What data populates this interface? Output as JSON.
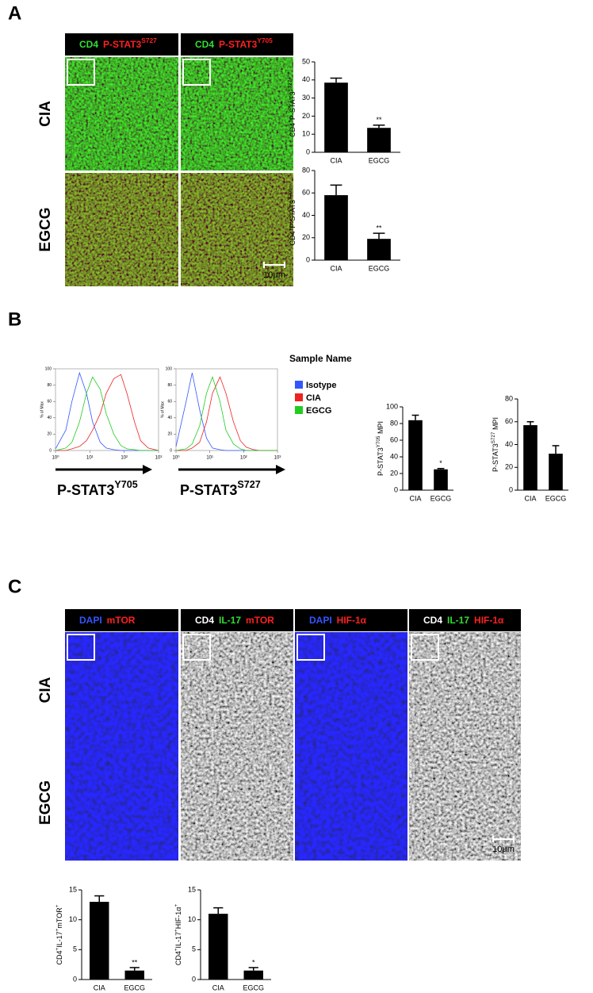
{
  "panel_labels": [
    "A",
    "B",
    "C"
  ],
  "panel_a": {
    "headers": [
      [
        {
          "text": "CD4",
          "color": "#33dd33"
        },
        {
          "text": "P-STAT3",
          "color": "#ff2020"
        },
        {
          "text": "S727",
          "color": "#ff2020",
          "sup": true
        }
      ],
      [
        {
          "text": "CD4",
          "color": "#33dd33"
        },
        {
          "text": "P-STAT3",
          "color": "#ff2020"
        },
        {
          "text": "Y705",
          "color": "#ff2020",
          "sup": true
        }
      ]
    ],
    "row_labels": [
      "CIA",
      "EGCG"
    ],
    "scale_bar": "10μm"
  },
  "panel_b": {
    "legend_title": "Sample Name"
  },
  "panel_c": {
    "headers": [
      [
        {
          "text": "DAPI",
          "color": "#3355ff"
        },
        {
          "text": "mTOR",
          "color": "#ff2020"
        }
      ],
      [
        {
          "text": "CD4",
          "color": "#ffffff"
        },
        {
          "text": "IL-17",
          "color": "#33dd33"
        },
        {
          "text": "mTOR",
          "color": "#ff2020"
        }
      ],
      [
        {
          "text": "DAPI",
          "color": "#3355ff"
        },
        {
          "text": "HIF-1α",
          "color": "#ff2020"
        }
      ],
      [
        {
          "text": "CD4",
          "color": "#ffffff"
        },
        {
          "text": "IL-17",
          "color": "#33dd33"
        },
        {
          "text": "HIF-1α",
          "color": "#ff2020"
        }
      ]
    ],
    "row_labels": [
      "CIA",
      "EGCG"
    ],
    "scale_bar": "10μm"
  },
  "chart_data": [
    {
      "type": "bar",
      "y_label": [
        {
          "text": "CD4"
        },
        {
          "text": "+",
          "sup": true
        },
        {
          "text": "P-STAT3"
        },
        {
          "text": "S727+",
          "sup": true
        }
      ],
      "categories": [
        "CIA",
        "EGCG"
      ],
      "values": [
        38.5,
        13.5
      ],
      "errors": [
        2.5,
        1.5
      ],
      "significance": [
        null,
        "**"
      ],
      "color": "#000000",
      "ylim": [
        0,
        50
      ],
      "yticks": [
        0,
        10,
        20,
        30,
        40,
        50
      ]
    },
    {
      "type": "bar",
      "y_label": [
        {
          "text": "CD4"
        },
        {
          "text": "+",
          "sup": true
        },
        {
          "text": "P-STAT3"
        },
        {
          "text": "Y705+",
          "sup": true
        }
      ],
      "categories": [
        "CIA",
        "EGCG"
      ],
      "values": [
        58,
        19
      ],
      "errors": [
        9,
        5
      ],
      "significance": [
        null,
        "**"
      ],
      "color": "#000000",
      "ylim": [
        0,
        80
      ],
      "yticks": [
        0,
        20,
        40,
        60,
        80
      ]
    },
    {
      "type": "line",
      "log_x": true,
      "y_label": [
        {
          "text": "% of Max"
        }
      ],
      "x_label": [
        {
          "text": "P-STAT3"
        },
        {
          "text": "Y705",
          "sup": true
        }
      ],
      "x": [
        1,
        2,
        3,
        5,
        8,
        12,
        20,
        30,
        50,
        80,
        120,
        200,
        300,
        500,
        1000
      ],
      "series": [
        {
          "name": "Isotype",
          "color": "#3355ff",
          "values": [
            2,
            25,
            60,
            95,
            70,
            35,
            10,
            3,
            1,
            0,
            0,
            0,
            0,
            0,
            0
          ]
        },
        {
          "name": "CIA",
          "color": "#ee2222",
          "values": [
            0,
            0,
            2,
            5,
            12,
            25,
            45,
            70,
            88,
            93,
            70,
            35,
            12,
            3,
            0
          ]
        },
        {
          "name": "EGCG",
          "color": "#22cc22",
          "values": [
            0,
            3,
            10,
            35,
            70,
            90,
            75,
            45,
            20,
            6,
            2,
            1,
            0,
            0,
            0
          ]
        }
      ],
      "xlim": [
        1,
        1000
      ],
      "xticks": [
        {
          "value": 1,
          "label": "10⁰"
        },
        {
          "value": 10,
          "label": "10¹"
        },
        {
          "value": 100,
          "label": "10²"
        },
        {
          "value": 1000,
          "label": "10³"
        }
      ],
      "ylim": [
        0,
        100
      ],
      "yticks": [
        0,
        20,
        40,
        60,
        80,
        100
      ]
    },
    {
      "type": "line",
      "log_x": true,
      "y_label": [
        {
          "text": "% of Max"
        }
      ],
      "x_label": [
        {
          "text": "P-STAT3"
        },
        {
          "text": "S727",
          "sup": true
        }
      ],
      "x": [
        1,
        2,
        3,
        5,
        8,
        12,
        20,
        30,
        50,
        80,
        120,
        200,
        300,
        500,
        1000
      ],
      "series": [
        {
          "color": "#3355ff",
          "values": [
            5,
            60,
            95,
            50,
            15,
            3,
            1,
            0,
            0,
            0,
            0,
            0,
            0,
            0,
            0
          ]
        },
        {
          "color": "#ee2222",
          "values": [
            0,
            0,
            3,
            10,
            35,
            70,
            90,
            70,
            35,
            12,
            4,
            1,
            0,
            0,
            0
          ]
        },
        {
          "color": "#22cc22",
          "values": [
            0,
            2,
            8,
            30,
            70,
            90,
            60,
            25,
            8,
            2,
            0,
            0,
            0,
            0,
            0
          ]
        }
      ],
      "xlim": [
        1,
        1000
      ],
      "xticks": [
        {
          "value": 1,
          "label": "10⁰"
        },
        {
          "value": 10,
          "label": "10¹"
        },
        {
          "value": 100,
          "label": "10²"
        },
        {
          "value": 1000,
          "label": "10³"
        }
      ],
      "ylim": [
        0,
        100
      ],
      "yticks": [
        0,
        20,
        40,
        60,
        80,
        100
      ]
    },
    {
      "type": "bar",
      "y_label": [
        {
          "text": "P-STAT3"
        },
        {
          "text": "Y705",
          "sup": true
        },
        {
          "text": " MPI"
        }
      ],
      "categories": [
        "CIA",
        "EGCG"
      ],
      "values": [
        84,
        25
      ],
      "errors": [
        6,
        1
      ],
      "significance": [
        null,
        "*"
      ],
      "color": "#000000",
      "ylim": [
        0,
        100
      ],
      "yticks": [
        0,
        20,
        40,
        60,
        80,
        100
      ]
    },
    {
      "type": "bar",
      "y_label": [
        {
          "text": "P-STAT3"
        },
        {
          "text": "S727",
          "sup": true
        },
        {
          "text": " MPI"
        }
      ],
      "categories": [
        "CIA",
        "EGCG"
      ],
      "values": [
        57,
        32
      ],
      "errors": [
        3,
        7
      ],
      "color": "#000000",
      "ylim": [
        0,
        80
      ],
      "yticks": [
        0,
        20,
        40,
        60,
        80
      ]
    },
    {
      "type": "bar",
      "y_label": [
        {
          "text": "CD4"
        },
        {
          "text": "+",
          "sup": true
        },
        {
          "text": "IL-17"
        },
        {
          "text": "+",
          "sup": true
        },
        {
          "text": "mTOR"
        },
        {
          "text": "+",
          "sup": true
        }
      ],
      "categories": [
        "CIA",
        "EGCG"
      ],
      "values": [
        13,
        1.5
      ],
      "errors": [
        1,
        0.5
      ],
      "significance": [
        null,
        "**"
      ],
      "color": "#000000",
      "ylim": [
        0,
        15
      ],
      "yticks": [
        0,
        5,
        10,
        15
      ]
    },
    {
      "type": "bar",
      "y_label": [
        {
          "text": "CD4"
        },
        {
          "text": "+",
          "sup": true
        },
        {
          "text": "IL-17"
        },
        {
          "text": "+",
          "sup": true
        },
        {
          "text": "HIF-1α"
        },
        {
          "text": "+",
          "sup": true
        }
      ],
      "categories": [
        "CIA",
        "EGCG"
      ],
      "values": [
        11,
        1.5
      ],
      "errors": [
        1,
        0.5
      ],
      "significance": [
        null,
        "*"
      ],
      "color": "#000000",
      "ylim": [
        0,
        15
      ],
      "yticks": [
        0,
        5,
        10,
        15
      ]
    }
  ]
}
